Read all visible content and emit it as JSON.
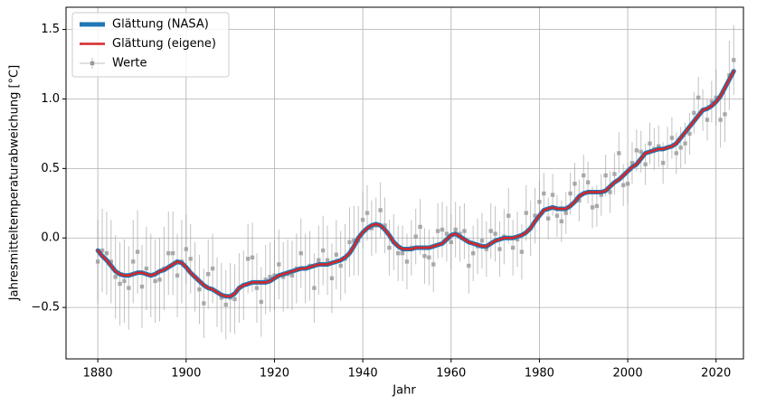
{
  "chart_data": {
    "type": "line",
    "xlabel": "Jahr",
    "ylabel": "Jahresmitteltemperaturabweichung [°C]",
    "xlim": [
      1872.8,
      2026.2
    ],
    "ylim": [
      -0.87,
      1.66
    ],
    "xticks": [
      1880,
      1900,
      1920,
      1940,
      1960,
      1980,
      2000,
      2020
    ],
    "yticks": [
      {
        "value": -0.5,
        "label": "−0.5"
      },
      {
        "value": 0,
        "label": "0.0"
      },
      0.5,
      {
        "value": 1,
        "label": "1.0"
      },
      1.5
    ],
    "grid": true,
    "legend": "upper left",
    "x": [
      1880,
      1881,
      1882,
      1883,
      1884,
      1885,
      1886,
      1887,
      1888,
      1889,
      1890,
      1891,
      1892,
      1893,
      1894,
      1895,
      1896,
      1897,
      1898,
      1899,
      1900,
      1901,
      1902,
      1903,
      1904,
      1905,
      1906,
      1907,
      1908,
      1909,
      1910,
      1911,
      1912,
      1913,
      1914,
      1915,
      1916,
      1917,
      1918,
      1919,
      1920,
      1921,
      1922,
      1923,
      1924,
      1925,
      1926,
      1927,
      1928,
      1929,
      1930,
      1931,
      1932,
      1933,
      1934,
      1935,
      1936,
      1937,
      1938,
      1939,
      1940,
      1941,
      1942,
      1943,
      1944,
      1945,
      1946,
      1947,
      1948,
      1949,
      1950,
      1951,
      1952,
      1953,
      1954,
      1955,
      1956,
      1957,
      1958,
      1959,
      1960,
      1961,
      1962,
      1963,
      1964,
      1965,
      1966,
      1967,
      1968,
      1969,
      1970,
      1971,
      1972,
      1973,
      1974,
      1975,
      1976,
      1977,
      1978,
      1979,
      1980,
      1981,
      1982,
      1983,
      1984,
      1985,
      1986,
      1987,
      1988,
      1989,
      1990,
      1991,
      1992,
      1993,
      1994,
      1995,
      1996,
      1997,
      1998,
      1999,
      2000,
      2001,
      2002,
      2003,
      2004,
      2005,
      2006,
      2007,
      2008,
      2009,
      2010,
      2011,
      2012,
      2013,
      2014,
      2015,
      2016,
      2017,
      2018,
      2019,
      2020,
      2021,
      2022,
      2023,
      2024
    ],
    "series": [
      {
        "name": "Werte",
        "color": "#999999",
        "style": "errorbar",
        "values": [
          -0.17,
          -0.09,
          -0.11,
          -0.17,
          -0.28,
          -0.33,
          -0.31,
          -0.36,
          -0.17,
          -0.1,
          -0.35,
          -0.22,
          -0.27,
          -0.31,
          -0.3,
          -0.22,
          -0.11,
          -0.11,
          -0.27,
          -0.17,
          -0.08,
          -0.15,
          -0.28,
          -0.37,
          -0.47,
          -0.26,
          -0.22,
          -0.39,
          -0.43,
          -0.48,
          -0.43,
          -0.44,
          -0.36,
          -0.34,
          -0.15,
          -0.14,
          -0.36,
          -0.46,
          -0.3,
          -0.28,
          -0.27,
          -0.19,
          -0.28,
          -0.26,
          -0.27,
          -0.22,
          -0.11,
          -0.22,
          -0.2,
          -0.36,
          -0.16,
          -0.09,
          -0.16,
          -0.29,
          -0.12,
          -0.2,
          -0.15,
          -0.03,
          -0.02,
          -0.02,
          0.13,
          0.18,
          0.07,
          0.09,
          0.2,
          0.09,
          -0.07,
          -0.03,
          -0.11,
          -0.11,
          -0.17,
          -0.07,
          0.01,
          0.08,
          -0.13,
          -0.14,
          -0.19,
          0.05,
          0.06,
          0.03,
          -0.03,
          0.06,
          0.03,
          0.05,
          -0.2,
          -0.11,
          -0.06,
          -0.02,
          -0.08,
          0.05,
          0.03,
          -0.08,
          0.01,
          0.16,
          -0.07,
          -0.01,
          -0.1,
          0.18,
          0.07,
          0.16,
          0.26,
          0.32,
          0.14,
          0.31,
          0.16,
          0.12,
          0.18,
          0.32,
          0.39,
          0.27,
          0.45,
          0.4,
          0.22,
          0.23,
          0.31,
          0.45,
          0.33,
          0.46,
          0.61,
          0.38,
          0.39,
          0.54,
          0.63,
          0.62,
          0.53,
          0.68,
          0.64,
          0.66,
          0.54,
          0.65,
          0.72,
          0.61,
          0.65,
          0.68,
          0.75,
          0.9,
          1.01,
          0.92,
          0.85,
          0.98,
          1.01,
          0.85,
          0.89,
          1.17,
          1.28
        ],
        "errors": [
          0.3,
          0.3,
          0.3,
          0.3,
          0.3,
          0.3,
          0.3,
          0.3,
          0.3,
          0.3,
          0.3,
          0.3,
          0.3,
          0.3,
          0.3,
          0.3,
          0.3,
          0.3,
          0.3,
          0.3,
          0.25,
          0.25,
          0.25,
          0.25,
          0.25,
          0.25,
          0.25,
          0.25,
          0.25,
          0.25,
          0.25,
          0.25,
          0.25,
          0.25,
          0.25,
          0.25,
          0.25,
          0.25,
          0.25,
          0.25,
          0.25,
          0.25,
          0.25,
          0.25,
          0.25,
          0.25,
          0.25,
          0.25,
          0.25,
          0.25,
          0.25,
          0.25,
          0.25,
          0.25,
          0.25,
          0.25,
          0.25,
          0.25,
          0.25,
          0.25,
          0.2,
          0.2,
          0.2,
          0.2,
          0.2,
          0.2,
          0.2,
          0.2,
          0.2,
          0.2,
          0.2,
          0.2,
          0.2,
          0.2,
          0.2,
          0.2,
          0.2,
          0.2,
          0.2,
          0.2,
          0.2,
          0.2,
          0.2,
          0.2,
          0.2,
          0.2,
          0.2,
          0.2,
          0.2,
          0.2,
          0.2,
          0.2,
          0.2,
          0.2,
          0.2,
          0.2,
          0.2,
          0.2,
          0.2,
          0.2,
          0.15,
          0.15,
          0.15,
          0.15,
          0.15,
          0.15,
          0.15,
          0.15,
          0.15,
          0.15,
          0.15,
          0.15,
          0.15,
          0.15,
          0.15,
          0.15,
          0.15,
          0.15,
          0.15,
          0.15,
          0.15,
          0.15,
          0.15,
          0.15,
          0.15,
          0.15,
          0.15,
          0.15,
          0.15,
          0.15,
          0.15,
          0.15,
          0.15,
          0.15,
          0.15,
          0.15,
          0.15,
          0.15,
          0.15,
          0.15,
          0.2,
          0.2,
          0.2,
          0.25,
          0.25
        ]
      },
      {
        "name": "Glättung (NASA)",
        "color": "#1f77b4",
        "linewidth": 5,
        "values": [
          -0.09,
          -0.13,
          -0.16,
          -0.2,
          -0.24,
          -0.26,
          -0.27,
          -0.27,
          -0.26,
          -0.25,
          -0.25,
          -0.26,
          -0.27,
          -0.26,
          -0.24,
          -0.23,
          -0.21,
          -0.19,
          -0.17,
          -0.18,
          -0.21,
          -0.25,
          -0.28,
          -0.31,
          -0.34,
          -0.36,
          -0.37,
          -0.39,
          -0.41,
          -0.42,
          -0.42,
          -0.4,
          -0.36,
          -0.34,
          -0.33,
          -0.32,
          -0.32,
          -0.32,
          -0.32,
          -0.31,
          -0.29,
          -0.27,
          -0.26,
          -0.25,
          -0.24,
          -0.23,
          -0.22,
          -0.22,
          -0.21,
          -0.2,
          -0.19,
          -0.19,
          -0.19,
          -0.18,
          -0.17,
          -0.16,
          -0.14,
          -0.11,
          -0.06,
          0.0,
          0.04,
          0.07,
          0.09,
          0.1,
          0.09,
          0.06,
          0.02,
          -0.03,
          -0.06,
          -0.08,
          -0.08,
          -0.08,
          -0.07,
          -0.07,
          -0.07,
          -0.07,
          -0.06,
          -0.05,
          -0.04,
          -0.01,
          0.02,
          0.03,
          0.01,
          -0.01,
          -0.03,
          -0.04,
          -0.05,
          -0.06,
          -0.06,
          -0.04,
          -0.02,
          -0.01,
          0.0,
          0.0,
          0.0,
          0.01,
          0.02,
          0.04,
          0.07,
          0.12,
          0.16,
          0.2,
          0.21,
          0.22,
          0.21,
          0.21,
          0.21,
          0.23,
          0.26,
          0.3,
          0.32,
          0.33,
          0.33,
          0.33,
          0.33,
          0.34,
          0.37,
          0.4,
          0.42,
          0.45,
          0.48,
          0.51,
          0.53,
          0.57,
          0.61,
          0.62,
          0.63,
          0.64,
          0.64,
          0.65,
          0.66,
          0.68,
          0.72,
          0.76,
          0.8,
          0.84,
          0.88,
          0.92,
          0.93,
          0.95,
          0.98,
          1.02,
          1.08,
          1.14,
          1.2
        ]
      },
      {
        "name": "Glättung (eigene)",
        "color": "#d62728",
        "linewidth": 2.5,
        "values": [
          -0.09,
          -0.13,
          -0.16,
          -0.2,
          -0.24,
          -0.26,
          -0.27,
          -0.27,
          -0.26,
          -0.25,
          -0.25,
          -0.26,
          -0.27,
          -0.26,
          -0.24,
          -0.23,
          -0.21,
          -0.19,
          -0.17,
          -0.18,
          -0.21,
          -0.25,
          -0.28,
          -0.31,
          -0.34,
          -0.36,
          -0.37,
          -0.39,
          -0.41,
          -0.42,
          -0.42,
          -0.4,
          -0.36,
          -0.34,
          -0.33,
          -0.32,
          -0.32,
          -0.32,
          -0.32,
          -0.31,
          -0.29,
          -0.27,
          -0.26,
          -0.25,
          -0.24,
          -0.23,
          -0.22,
          -0.22,
          -0.21,
          -0.2,
          -0.19,
          -0.19,
          -0.19,
          -0.18,
          -0.17,
          -0.16,
          -0.14,
          -0.11,
          -0.06,
          0.0,
          0.04,
          0.07,
          0.09,
          0.1,
          0.09,
          0.06,
          0.02,
          -0.03,
          -0.06,
          -0.08,
          -0.08,
          -0.08,
          -0.07,
          -0.07,
          -0.07,
          -0.07,
          -0.06,
          -0.05,
          -0.04,
          -0.01,
          0.02,
          0.03,
          0.01,
          -0.01,
          -0.03,
          -0.04,
          -0.05,
          -0.06,
          -0.06,
          -0.04,
          -0.02,
          -0.01,
          0.0,
          0.0,
          0.0,
          0.01,
          0.02,
          0.04,
          0.07,
          0.12,
          0.16,
          0.2,
          0.21,
          0.22,
          0.21,
          0.21,
          0.21,
          0.23,
          0.26,
          0.3,
          0.32,
          0.33,
          0.33,
          0.33,
          0.33,
          0.34,
          0.37,
          0.4,
          0.42,
          0.45,
          0.48,
          0.51,
          0.53,
          0.57,
          0.61,
          0.62,
          0.63,
          0.64,
          0.64,
          0.65,
          0.66,
          0.68,
          0.72,
          0.76,
          0.8,
          0.84,
          0.88,
          0.92,
          0.93,
          0.95,
          0.98,
          1.02,
          1.08,
          1.14,
          1.2
        ]
      }
    ]
  }
}
